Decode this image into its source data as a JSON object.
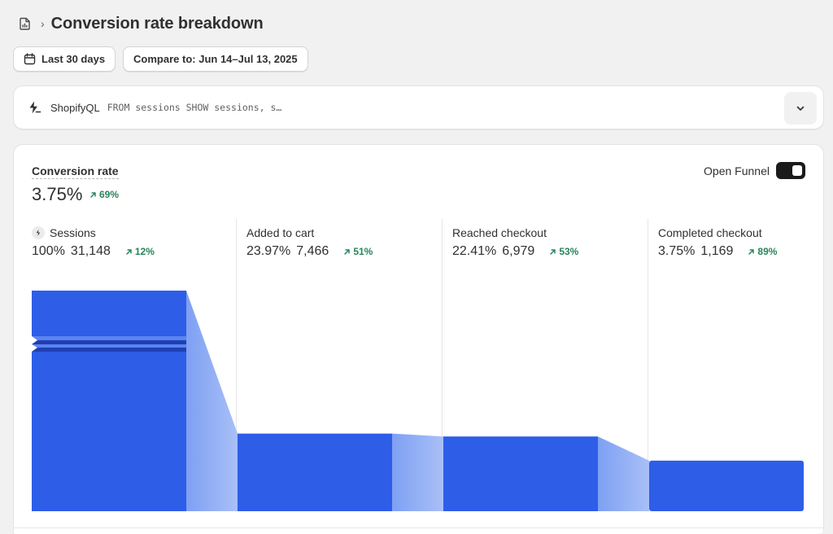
{
  "header": {
    "title": "Conversion rate breakdown",
    "separator": "›"
  },
  "filters": {
    "date_range": "Last 30 days",
    "compare": "Compare to: Jun 14–Jul 13, 2025"
  },
  "ql": {
    "label": "ShopifyQL",
    "query": "FROM sessions SHOW sessions, s…"
  },
  "card": {
    "metric_title": "Conversion rate",
    "metric_value": "3.75%",
    "metric_delta": "69%",
    "funnel_toggle_label": "Open Funnel",
    "funnel_toggle_on": true
  },
  "colors": {
    "bar": "#2e5de8",
    "bar_dark_stripe": "#1f3fb3",
    "bar_light_stripe": "#5b83f0",
    "flow_start": "#7ea0f3",
    "flow_end": "#a9c0f7",
    "positive": "#29845a"
  },
  "chart_data": {
    "type": "bar",
    "categories": [
      "Sessions",
      "Added to cart",
      "Reached checkout",
      "Completed checkout"
    ],
    "percentages": [
      "100%",
      "23.97%",
      "22.41%",
      "3.75%"
    ],
    "counts": [
      "31,148",
      "7,466",
      "6,979",
      "1,169"
    ],
    "deltas": [
      "12%",
      "51%",
      "53%",
      "89%"
    ],
    "values": [
      31148,
      7466,
      6979,
      1169
    ],
    "series": [
      {
        "values": [
          31148,
          7466,
          6979,
          1169
        ]
      }
    ]
  }
}
